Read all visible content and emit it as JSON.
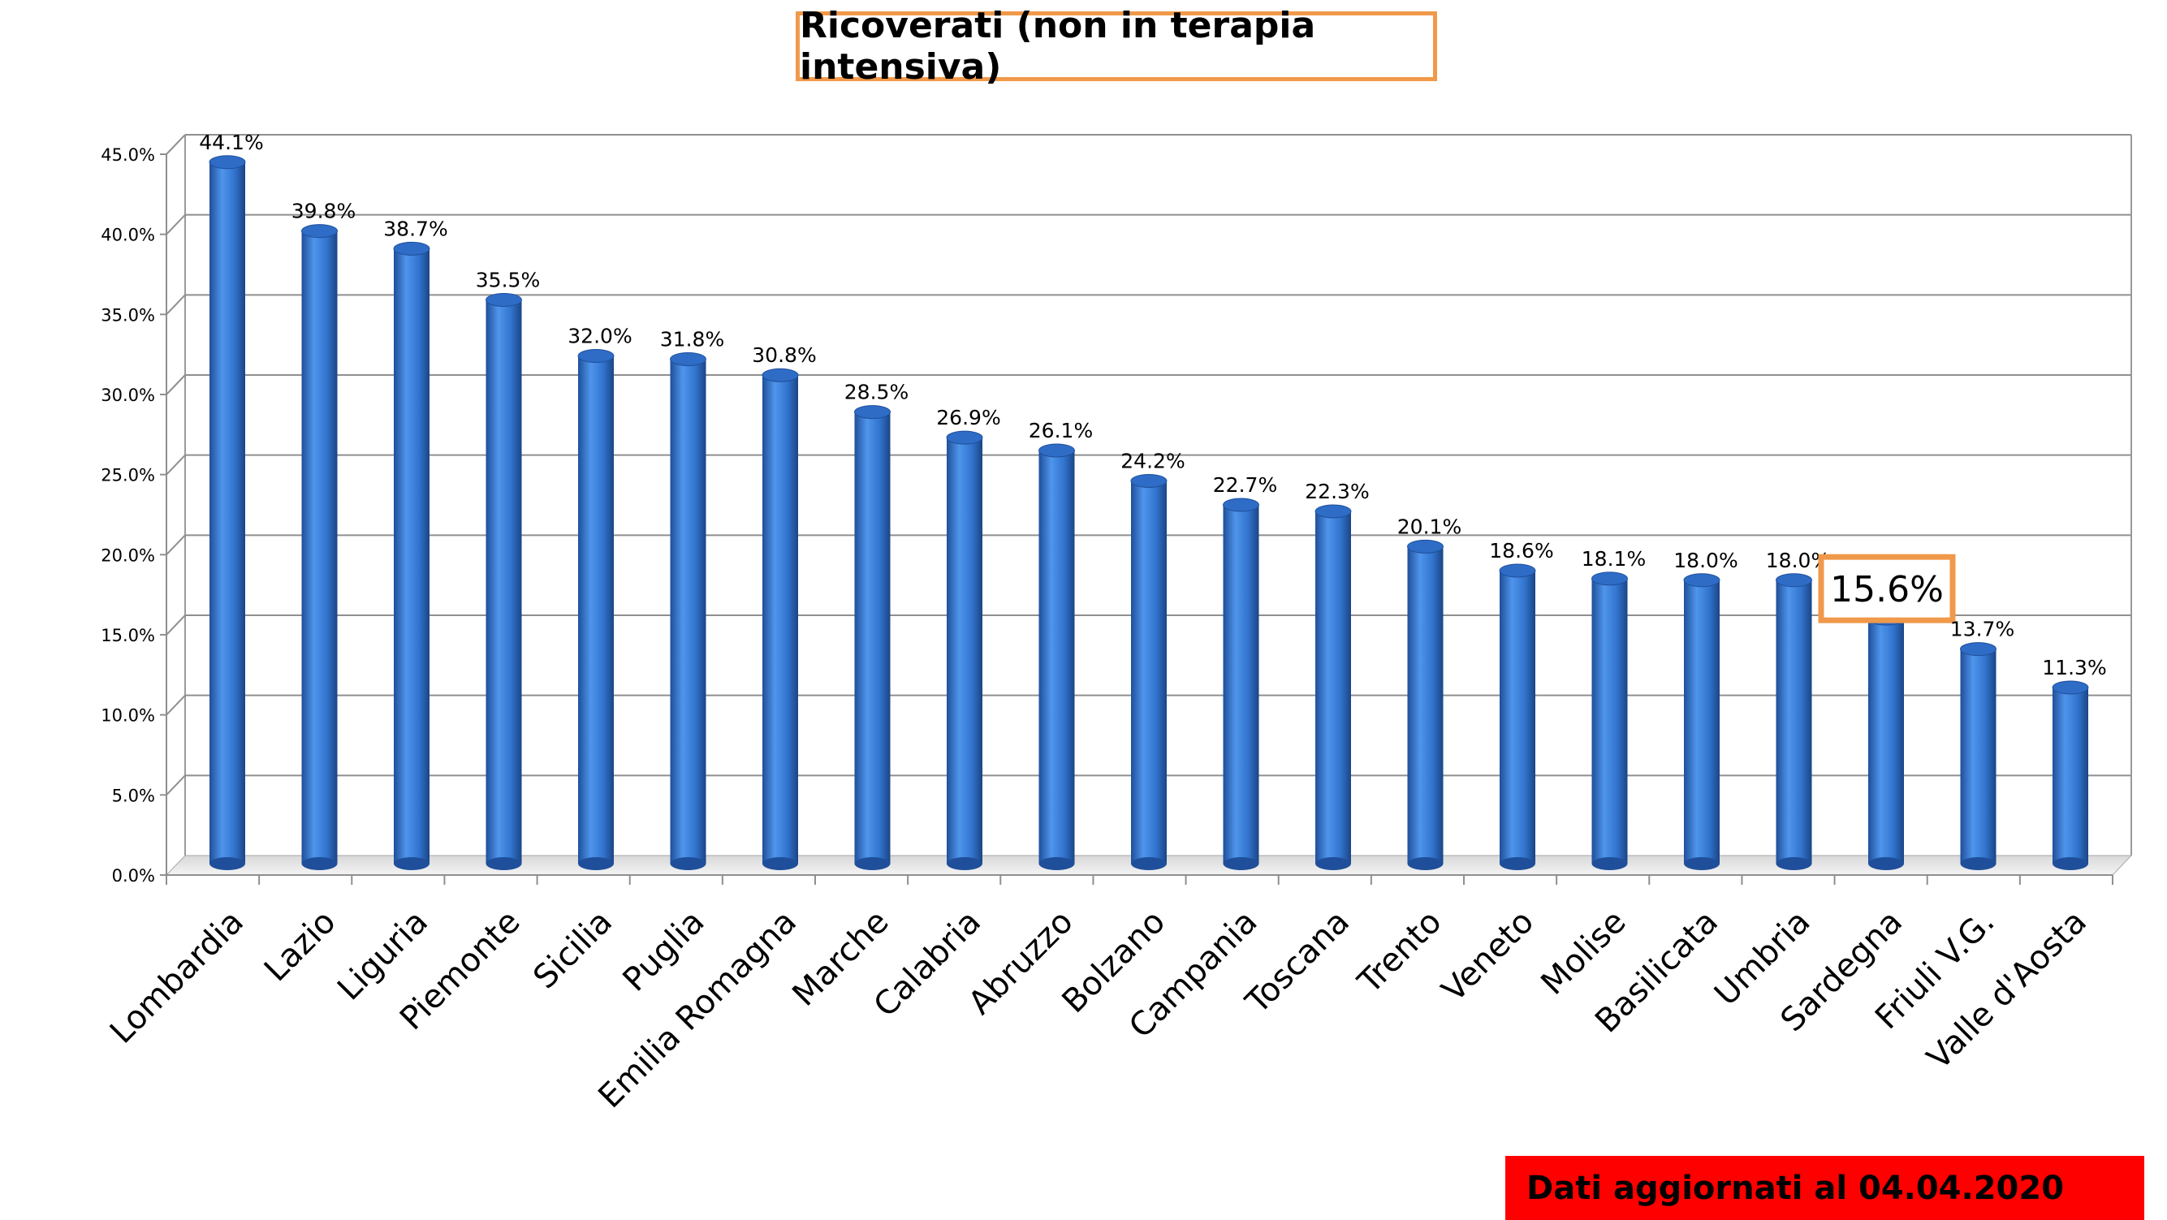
{
  "chart_data": {
    "type": "bar",
    "title": "Ricoverati (non in terapia intensiva)",
    "note": "Dati aggiornati al 04.04.2020",
    "categories": [
      "Lombardia",
      "Lazio",
      "Liguria",
      "Piemonte",
      "Sicilia",
      "Puglia",
      "Emilia Romagna",
      "Marche",
      "Calabria",
      "Abruzzo",
      "Bolzano",
      "Campania",
      "Toscana",
      "Trento",
      "Veneto",
      "Molise",
      "Basilicata",
      "Umbria",
      "Sardegna",
      "Friuli V.G.",
      "Valle d'Aosta"
    ],
    "values": [
      44.1,
      39.8,
      38.7,
      35.5,
      32.0,
      31.8,
      30.8,
      28.5,
      26.9,
      26.1,
      24.2,
      22.7,
      22.3,
      20.1,
      18.6,
      18.1,
      18.0,
      18.0,
      15.6,
      13.7,
      11.3
    ],
    "value_labels": [
      "44.1%",
      "39.8%",
      "38.7%",
      "35.5%",
      "32.0%",
      "31.8%",
      "30.8%",
      "28.5%",
      "26.9%",
      "26.1%",
      "24.2%",
      "22.7%",
      "22.3%",
      "20.1%",
      "18.6%",
      "18.1%",
      "18.0%",
      "18.0%",
      "15.6%",
      "13.7%",
      "11.3%"
    ],
    "highlighted_category": "Sardegna",
    "y_ticks": [
      "0.0%",
      "5.0%",
      "10.0%",
      "15.0%",
      "20.0%",
      "25.0%",
      "30.0%",
      "35.0%",
      "40.0%",
      "45.0%"
    ],
    "ylim": [
      0,
      45
    ],
    "grid": true,
    "legend": "none",
    "colors": {
      "bar": "#3a7bd5",
      "bar_dark": "#1f4f9a",
      "highlight_border": "#f0994a",
      "note_background": "#ff0000"
    }
  }
}
